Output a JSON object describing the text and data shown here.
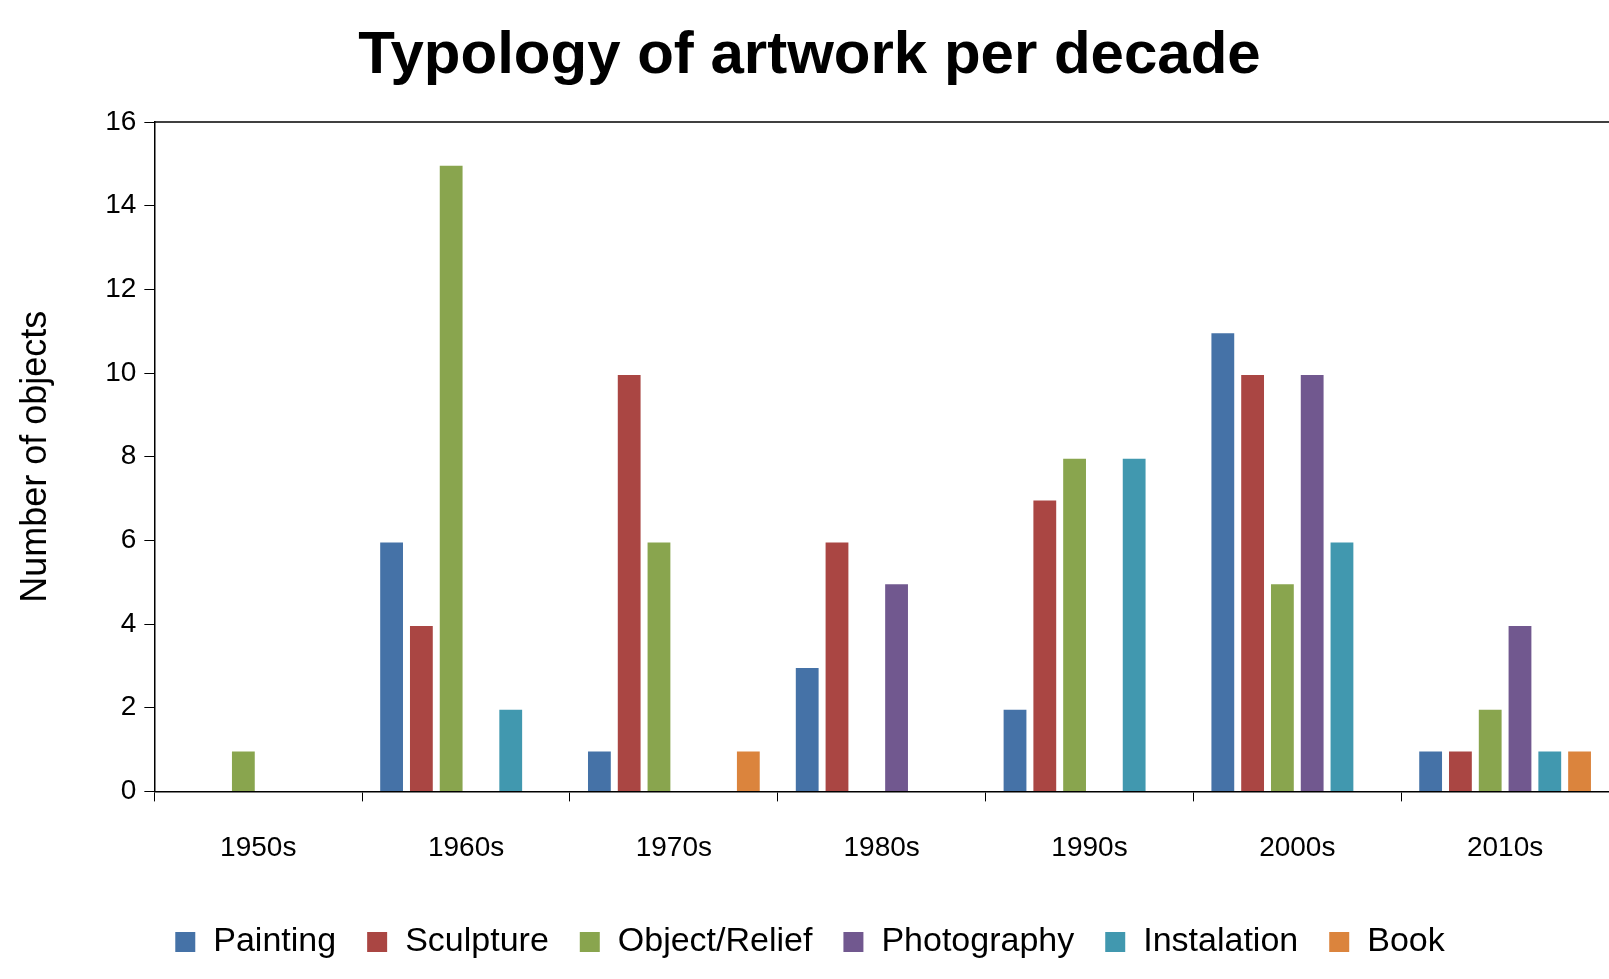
{
  "chart_data": {
    "type": "bar",
    "title": "Typology of artwork per decade",
    "ylabel": "Number of objects",
    "categories": [
      "1950s",
      "1960s",
      "1970s",
      "1980s",
      "1990s",
      "2000s",
      "2010s"
    ],
    "series": [
      {
        "name": "Painting",
        "color": "#4572a7",
        "values": [
          0,
          6,
          1,
          3,
          2,
          11,
          1
        ]
      },
      {
        "name": "Sculpture",
        "color": "#aa4643",
        "values": [
          0,
          4,
          10,
          6,
          7,
          10,
          1
        ]
      },
      {
        "name": "Object/Relief",
        "color": "#89a54e",
        "values": [
          1,
          15,
          6,
          0,
          8,
          5,
          2
        ]
      },
      {
        "name": "Photography",
        "color": "#71588f",
        "values": [
          0,
          0,
          0,
          5,
          0,
          10,
          4
        ]
      },
      {
        "name": "Instalation",
        "color": "#4198af",
        "values": [
          0,
          2,
          0,
          0,
          8,
          6,
          1
        ]
      },
      {
        "name": "Book",
        "color": "#db843d",
        "values": [
          0,
          0,
          1,
          0,
          0,
          0,
          1
        ]
      }
    ],
    "ylim": [
      0,
      16
    ],
    "yticks": [
      0,
      2,
      4,
      6,
      8,
      10,
      12,
      14,
      16
    ],
    "grid": false,
    "legend": "bottom"
  }
}
